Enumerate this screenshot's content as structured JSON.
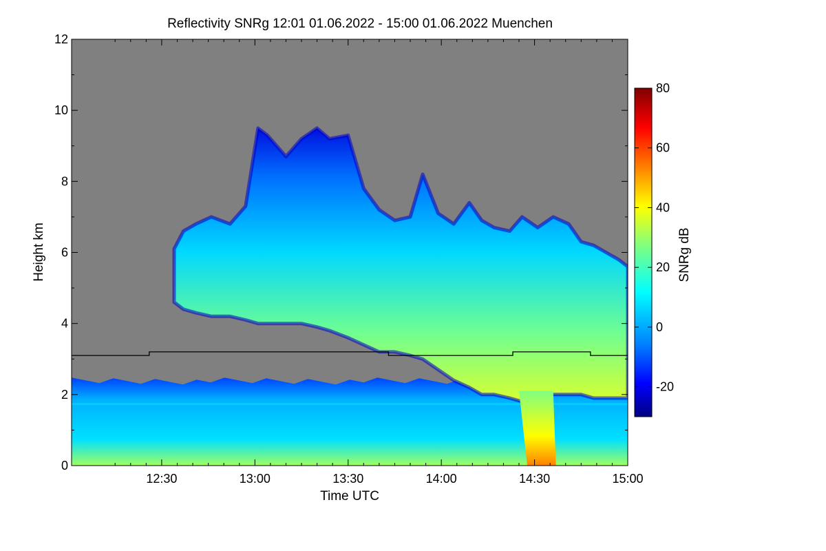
{
  "chart_data": {
    "type": "heatmap",
    "title": "Reflectivity SNRg   12:01 01.06.2022 - 15:00 01.06.2022 Muenchen",
    "xlabel": "Time UTC",
    "ylabel": "Height km",
    "xlim": [
      "12:01",
      "15:00"
    ],
    "ylim": [
      0,
      12
    ],
    "x_ticks": [
      {
        "label": "12:30",
        "minutes": 750
      },
      {
        "label": "13:00",
        "minutes": 780
      },
      {
        "label": "13:30",
        "minutes": 810
      },
      {
        "label": "14:00",
        "minutes": 840
      },
      {
        "label": "14:30",
        "minutes": 870
      },
      {
        "label": "15:00",
        "minutes": 900
      }
    ],
    "y_ticks": [
      "0",
      "2",
      "4",
      "6",
      "8",
      "10",
      "12"
    ],
    "colorbar": {
      "label": "SNRg dB",
      "range": [
        -30,
        80
      ],
      "ticks": [
        "-20",
        "0",
        "20",
        "40",
        "60",
        "80"
      ],
      "colormap": [
        "#000080",
        "#0000ff",
        "#0080ff",
        "#00ffff",
        "#80ff80",
        "#ffff00",
        "#ff8000",
        "#ff0000",
        "#800000"
      ]
    },
    "background_color": "#808080",
    "cloud": {
      "time_min": [
        754,
        757,
        761,
        766,
        772,
        777,
        781,
        784,
        790,
        795,
        800,
        804,
        810,
        815,
        820,
        825,
        830,
        834,
        839,
        844,
        849,
        853,
        857,
        862,
        866,
        871,
        876,
        881,
        885,
        889,
        893,
        897,
        900
      ],
      "top_km": [
        6.1,
        6.6,
        6.8,
        7.0,
        6.8,
        7.3,
        9.5,
        9.3,
        8.7,
        9.2,
        9.5,
        9.2,
        9.3,
        7.8,
        7.2,
        6.9,
        7.0,
        8.2,
        7.1,
        6.8,
        7.4,
        6.9,
        6.7,
        6.6,
        7.0,
        6.7,
        7.0,
        6.8,
        6.3,
        6.2,
        6.0,
        5.8,
        5.6
      ],
      "base_km": [
        4.6,
        4.4,
        4.3,
        4.2,
        4.2,
        4.1,
        4.0,
        4.0,
        4.0,
        4.0,
        3.9,
        3.8,
        3.6,
        3.4,
        3.2,
        3.2,
        3.1,
        3.0,
        2.7,
        2.4,
        2.2,
        2.0,
        2.0,
        1.9,
        1.8,
        1.9,
        2.0,
        2.0,
        2.0,
        1.9,
        1.9,
        1.9,
        1.9
      ]
    },
    "boundary_layer": {
      "top_km": 2.4,
      "dropout_km": 1.8
    },
    "precipitation": {
      "time_min": [
        865,
        876
      ],
      "intensity_db": 50
    },
    "black_line": {
      "time_min": [
        721,
        746,
        746,
        796,
        796,
        823,
        823,
        846,
        846,
        863,
        863,
        888,
        888,
        900
      ],
      "height_km": [
        3.1,
        3.1,
        3.2,
        3.2,
        3.2,
        3.2,
        3.1,
        3.1,
        3.1,
        3.1,
        3.2,
        3.2,
        3.1,
        3.1
      ]
    }
  }
}
